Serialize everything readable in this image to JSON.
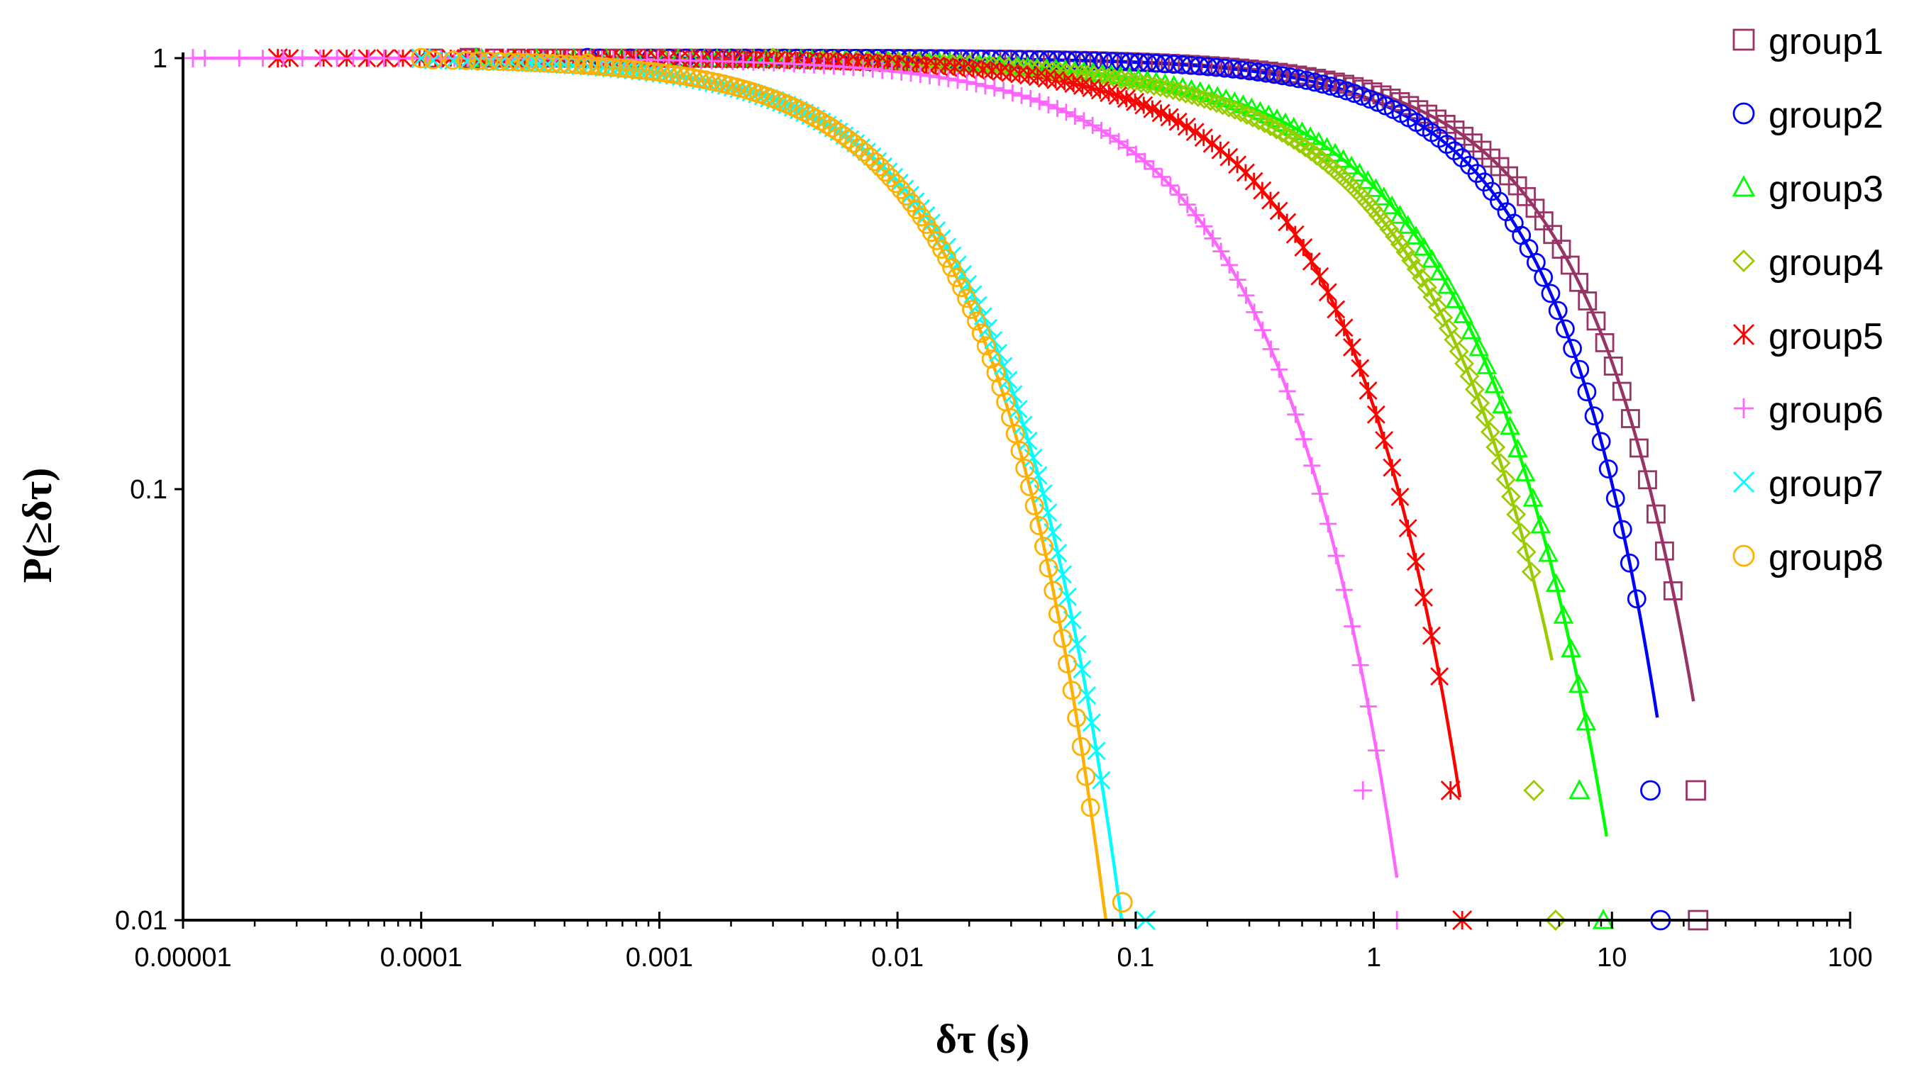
{
  "chart_data": {
    "type": "scatter",
    "xscale": "log",
    "yscale": "log",
    "xlim": [
      1e-05,
      100
    ],
    "ylim": [
      0.01,
      1
    ],
    "xlabel": "δτ (s)",
    "ylabel": "P(≥δτ)",
    "xticks": [
      {
        "value": 1e-05,
        "label": "0.00001"
      },
      {
        "value": 0.0001,
        "label": "0.0001"
      },
      {
        "value": 0.001,
        "label": "0.001"
      },
      {
        "value": 0.01,
        "label": "0.01"
      },
      {
        "value": 0.1,
        "label": "0.1"
      },
      {
        "value": 1,
        "label": "1"
      },
      {
        "value": 10,
        "label": "10"
      },
      {
        "value": 100,
        "label": "100"
      }
    ],
    "yticks": [
      {
        "value": 1,
        "label": "1"
      },
      {
        "value": 0.1,
        "label": "0.1"
      },
      {
        "value": 0.01,
        "label": "0.01"
      }
    ],
    "legend_position": "right",
    "series": [
      {
        "name": "group1",
        "color": "#993366",
        "marker": "square",
        "fit": {
          "tau": 6.0,
          "beta": 0.95,
          "xmin": 0.0001,
          "xmax": 22
        },
        "lonePoints": [
          [
            0.00016,
            1.0
          ],
          [
            22.5,
            0.02
          ],
          [
            23,
            0.01
          ]
        ]
      },
      {
        "name": "group2",
        "color": "#0000FF",
        "marker": "circle",
        "fit": {
          "tau": 4.4,
          "beta": 1.0,
          "xmin": 0.0005,
          "xmax": 15.5
        },
        "lonePoints": [
          [
            0.0005,
            1.0
          ],
          [
            14.5,
            0.02
          ],
          [
            16,
            0.01
          ]
        ]
      },
      {
        "name": "group3",
        "color": "#00FF00",
        "marker": "triangle",
        "fit": {
          "tau": 1.6,
          "beta": 0.8,
          "xmin": 0.00016,
          "xmax": 9.5
        },
        "lonePoints": [
          [
            0.00017,
            1.0
          ],
          [
            7.3,
            0.02
          ],
          [
            9.2,
            0.01
          ]
        ]
      },
      {
        "name": "group4",
        "color": "#99CC00",
        "marker": "diamond",
        "fit": {
          "tau": 1.3,
          "beta": 0.8,
          "xmin": 0.003,
          "xmax": 5.6
        },
        "lonePoints": [
          [
            0.003,
            1.0
          ],
          [
            4.7,
            0.02
          ],
          [
            5.8,
            0.01
          ]
        ]
      },
      {
        "name": "group5",
        "color": "#FF0000",
        "marker": "asterisk",
        "fit": {
          "tau": 0.5,
          "beta": 0.9,
          "xmin": 2.5e-05,
          "xmax": 2.3
        },
        "lonePoints": [
          [
            2.5e-05,
            1.0
          ],
          [
            2.1,
            0.02
          ],
          [
            2.35,
            0.01
          ]
        ]
      },
      {
        "name": "group6",
        "color": "#FF66FF",
        "marker": "plus",
        "fit": {
          "tau": 0.22,
          "beta": 0.85,
          "xmin": 1.1e-05,
          "xmax": 1.25
        },
        "lonePoints": [
          [
            1.1e-05,
            1.0
          ],
          [
            0.9,
            0.02
          ],
          [
            1.25,
            0.01
          ]
        ]
      },
      {
        "name": "group7",
        "color": "#00FFFF",
        "marker": "cross",
        "fit": {
          "tau": 0.016,
          "beta": 0.9,
          "xmin": 0.0001,
          "xmax": 0.11
        },
        "lonePoints": [
          [
            0.0001,
            1.0
          ],
          [
            0.0003,
            0.98
          ],
          [
            0.11,
            0.01
          ]
        ]
      },
      {
        "name": "group8",
        "color": "#FFB000",
        "marker": "circle",
        "fit": {
          "tau": 0.015,
          "beta": 0.95,
          "xmin": 0.0001,
          "xmax": 0.09
        },
        "lonePoints": [
          [
            0.0001,
            1.0
          ],
          [
            0.0005,
            0.97
          ],
          [
            0.088,
            0.011
          ]
        ]
      }
    ]
  }
}
